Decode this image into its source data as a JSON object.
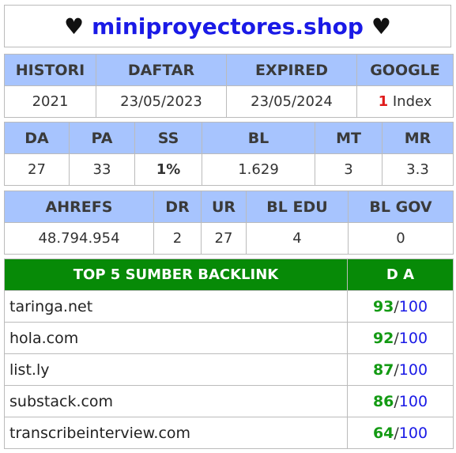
{
  "title": {
    "heart_left": "♥",
    "site": "miniproyectores.shop",
    "heart_right": "♥"
  },
  "table1": {
    "headers": [
      "HISTORI",
      "DAFTAR",
      "EXPIRED",
      "GOOGLE"
    ],
    "values": {
      "histori": "2021",
      "daftar": "23/05/2023",
      "expired": "23/05/2024",
      "google_count": "1",
      "google_label": " Index"
    }
  },
  "table2": {
    "headers": [
      "DA",
      "PA",
      "SS",
      "BL",
      "MT",
      "MR"
    ],
    "values": [
      "27",
      "33",
      "1%",
      "1.629",
      "3",
      "3.3"
    ]
  },
  "table3": {
    "headers": [
      "AHREFS",
      "DR",
      "UR",
      "BL EDU",
      "BL GOV"
    ],
    "values": [
      "48.794.954",
      "2",
      "27",
      "4",
      "0"
    ]
  },
  "backlinks": {
    "header_source": "TOP 5 SUMBER BACKLINK",
    "header_da": "D A",
    "max": "100",
    "slash": "/",
    "rows": [
      {
        "domain": "taringa.net",
        "score": "93"
      },
      {
        "domain": "hola.com",
        "score": "92"
      },
      {
        "domain": "list.ly",
        "score": "87"
      },
      {
        "domain": "substack.com",
        "score": "86"
      },
      {
        "domain": "transcribeinterview.com",
        "score": "64"
      }
    ]
  },
  "colors": {
    "header_bg": "#a7c4fe",
    "green_header": "#078a07",
    "site_blue": "#1a1ae6",
    "score_green": "#139a13",
    "index_red": "#e01b1b"
  }
}
